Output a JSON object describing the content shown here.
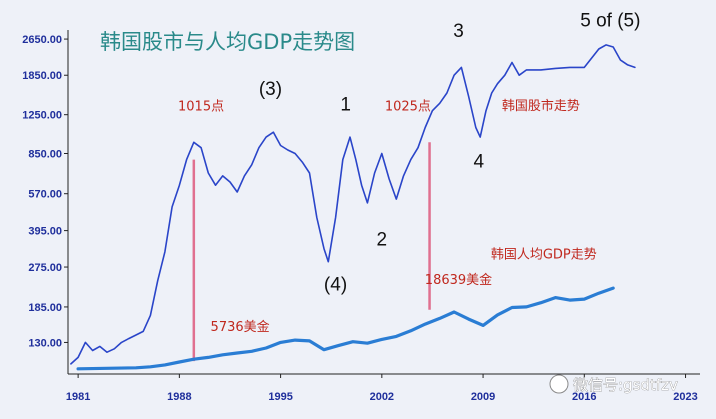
{
  "chart_data": {
    "type": "line",
    "title": "韩国股市与人均GDP走势图",
    "xlabel": "",
    "ylabel": "",
    "x_ticks": [
      "1981",
      "1988",
      "1995",
      "2002",
      "2009",
      "2016",
      "2023"
    ],
    "y_ticks": [
      "2650.00",
      "1850.00",
      "1250.00",
      "850.00",
      "570.00",
      "395.00",
      "275.00",
      "185.00",
      "130.00"
    ],
    "y_scale": "log",
    "xlim": [
      1980.3,
      2024
    ],
    "ylim": [
      95,
      2900
    ],
    "grid": false,
    "series": [
      {
        "name": "韩国股市走势",
        "color": "#2a45c9",
        "points": [
          [
            1980.5,
            105
          ],
          [
            1981,
            112
          ],
          [
            1981.5,
            130
          ],
          [
            1982,
            120
          ],
          [
            1982.5,
            125
          ],
          [
            1983,
            118
          ],
          [
            1983.5,
            122
          ],
          [
            1984,
            130
          ],
          [
            1984.5,
            135
          ],
          [
            1985,
            140
          ],
          [
            1985.5,
            145
          ],
          [
            1986,
            170
          ],
          [
            1986.5,
            240
          ],
          [
            1987,
            320
          ],
          [
            1987.5,
            500
          ],
          [
            1988,
            620
          ],
          [
            1988.5,
            800
          ],
          [
            1989,
            950
          ],
          [
            1989.5,
            900
          ],
          [
            1990,
            700
          ],
          [
            1990.5,
            620
          ],
          [
            1991,
            680
          ],
          [
            1991.5,
            640
          ],
          [
            1992,
            580
          ],
          [
            1992.5,
            680
          ],
          [
            1993,
            760
          ],
          [
            1993.5,
            900
          ],
          [
            1994,
            1000
          ],
          [
            1994.5,
            1050
          ],
          [
            1995,
            920
          ],
          [
            1995.5,
            880
          ],
          [
            1996,
            850
          ],
          [
            1996.5,
            780
          ],
          [
            1997,
            700
          ],
          [
            1997.5,
            450
          ],
          [
            1998,
            330
          ],
          [
            1998.3,
            290
          ],
          [
            1998.8,
            450
          ],
          [
            1999.3,
            800
          ],
          [
            1999.8,
            1000
          ],
          [
            2000.2,
            800
          ],
          [
            2000.6,
            620
          ],
          [
            2001,
            520
          ],
          [
            2001.5,
            700
          ],
          [
            2002,
            850
          ],
          [
            2002.5,
            660
          ],
          [
            2003,
            540
          ],
          [
            2003.5,
            680
          ],
          [
            2004,
            800
          ],
          [
            2004.5,
            900
          ],
          [
            2005,
            1100
          ],
          [
            2005.5,
            1300
          ],
          [
            2006,
            1400
          ],
          [
            2006.5,
            1550
          ],
          [
            2007,
            1850
          ],
          [
            2007.5,
            2000
          ],
          [
            2008,
            1500
          ],
          [
            2008.5,
            1100
          ],
          [
            2008.8,
            1000
          ],
          [
            2009.2,
            1300
          ],
          [
            2009.6,
            1550
          ],
          [
            2010,
            1700
          ],
          [
            2010.5,
            1850
          ],
          [
            2011,
            2100
          ],
          [
            2011.5,
            1850
          ],
          [
            2012,
            1950
          ],
          [
            2013,
            1950
          ],
          [
            2014,
            1980
          ],
          [
            2015,
            2000
          ],
          [
            2016,
            2000
          ],
          [
            2017,
            2400
          ],
          [
            2017.5,
            2500
          ],
          [
            2018,
            2450
          ],
          [
            2018.5,
            2150
          ],
          [
            2019,
            2050
          ],
          [
            2019.5,
            2000
          ]
        ]
      },
      {
        "name": "韩国人均GDP走势",
        "color": "#2a7dd4",
        "points": [
          [
            1981,
            100
          ],
          [
            1983,
            100.5
          ],
          [
            1985,
            101
          ],
          [
            1986,
            102
          ],
          [
            1987,
            104
          ],
          [
            1988,
            107
          ],
          [
            1989,
            110
          ],
          [
            1990,
            112
          ],
          [
            1991,
            115
          ],
          [
            1992,
            117
          ],
          [
            1993,
            119
          ],
          [
            1994,
            123
          ],
          [
            1995,
            130
          ],
          [
            1996,
            133
          ],
          [
            1997,
            132
          ],
          [
            1998,
            121
          ],
          [
            1999,
            126
          ],
          [
            2000,
            131
          ],
          [
            2001,
            129
          ],
          [
            2002,
            134
          ],
          [
            2003,
            138
          ],
          [
            2004,
            146
          ],
          [
            2005,
            156
          ],
          [
            2006,
            165
          ],
          [
            2007,
            176
          ],
          [
            2008,
            164
          ],
          [
            2009,
            154
          ],
          [
            2010,
            171
          ],
          [
            2011,
            184
          ],
          [
            2012,
            185
          ],
          [
            2013,
            193
          ],
          [
            2014,
            203
          ],
          [
            2015,
            198
          ],
          [
            2016,
            200
          ],
          [
            2017,
            212
          ],
          [
            2018,
            223
          ]
        ]
      }
    ],
    "vertical_markers": [
      {
        "year": 1989,
        "from": 108,
        "to": 800,
        "color": "#e07090"
      },
      {
        "year": 2005.3,
        "from": 180,
        "to": 950,
        "color": "#e07090"
      }
    ],
    "annotations": [
      {
        "text": "1015点",
        "x": 1989.5,
        "y": 1300
      },
      {
        "text": "(3)",
        "x": 1994.3,
        "y": 1520
      },
      {
        "text": "1",
        "x": 1999.5,
        "y": 1300
      },
      {
        "text": "1025点",
        "x": 2003.8,
        "y": 1300
      },
      {
        "text": "3",
        "x": 2007.3,
        "y": 2700
      },
      {
        "text": "5 of (5)",
        "x": 2017.8,
        "y": 3000
      },
      {
        "text": "韩国股市走势",
        "x": 2013,
        "y": 1310
      },
      {
        "text": "4",
        "x": 2008.7,
        "y": 740
      },
      {
        "text": "2",
        "x": 2002,
        "y": 340
      },
      {
        "text": "(4)",
        "x": 1998.8,
        "y": 218
      },
      {
        "text": "18639美金",
        "x": 2007.3,
        "y": 232
      },
      {
        "text": "韩国人均GDP走势",
        "x": 2013.2,
        "y": 300
      },
      {
        "text": "5736美金",
        "x": 1992.2,
        "y": 146
      }
    ],
    "watermark": "微信号:gsdtfzv"
  }
}
